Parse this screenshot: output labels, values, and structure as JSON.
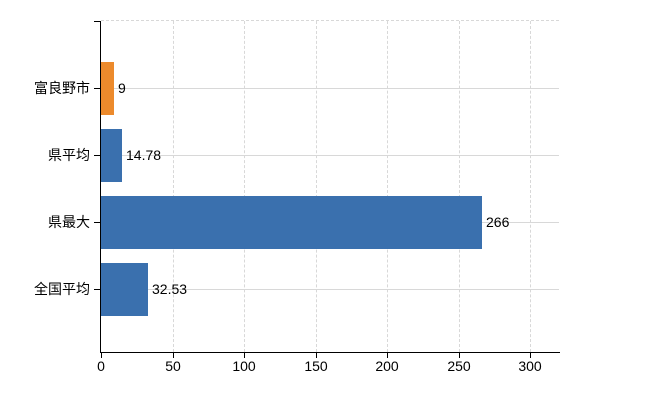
{
  "chart_data": {
    "type": "bar",
    "orientation": "horizontal",
    "title": "",
    "xlabel": "",
    "ylabel": "",
    "categories": [
      "富良野市",
      "県平均",
      "県最大",
      "全国平均"
    ],
    "values": [
      9,
      14.78,
      266,
      32.53
    ],
    "value_labels": [
      "9",
      "14.78",
      "266",
      "32.53"
    ],
    "bar_colors": [
      "#ec8a2c",
      "#3a70ae",
      "#3a70ae",
      "#3a70ae"
    ],
    "x_ticks": [
      0,
      50,
      100,
      150,
      200,
      250,
      300
    ],
    "x_tick_labels": [
      "0",
      "50",
      "100",
      "150",
      "200",
      "250",
      "300"
    ],
    "xlim": [
      0,
      320
    ],
    "grid": true,
    "legend": false,
    "colors": {
      "highlight_bar": "#ec8a2c",
      "default_bar": "#3a70ae",
      "grid": "#d8d8d8",
      "axis": "#000000",
      "text": "#000000",
      "background": "#ffffff"
    }
  }
}
